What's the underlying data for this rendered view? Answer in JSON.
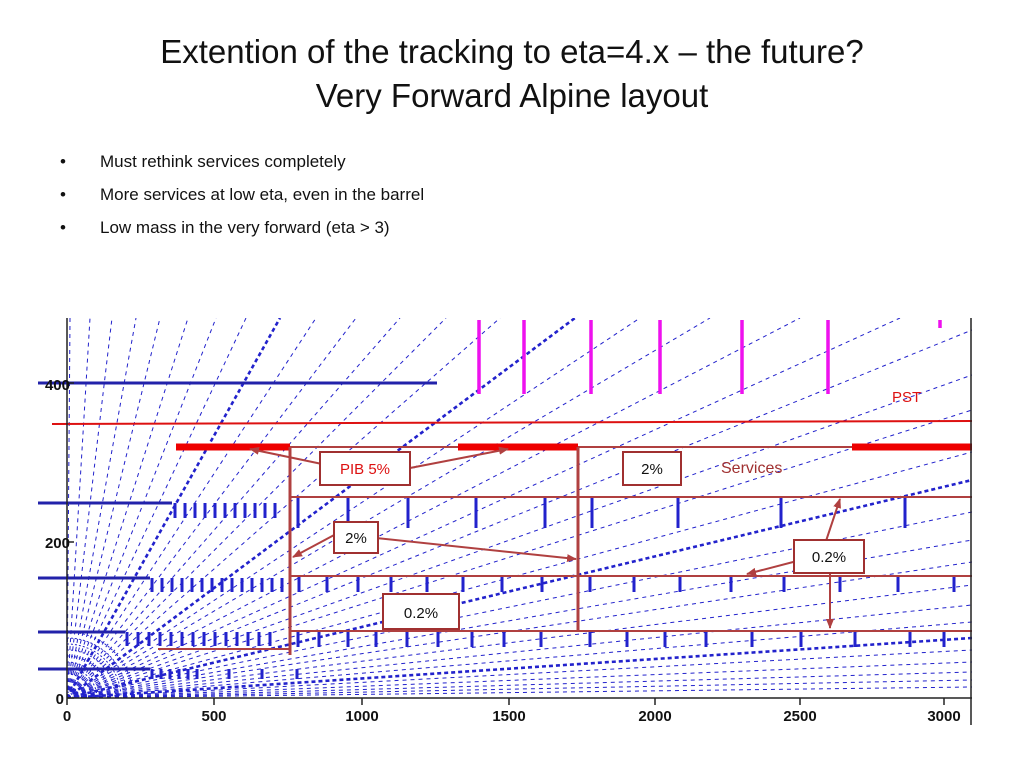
{
  "slide": {
    "title_line1": "Extention of the tracking to eta=4.x – the future?",
    "title_line2": "Very Forward Alpine layout",
    "bullets": [
      "Must rethink services completely",
      "More services at low eta, even in the barrel",
      "Low mass in the very forward (eta > 3)"
    ]
  },
  "diagram": {
    "x_ticks": [
      "0",
      "500",
      "1000",
      "1500",
      "2000",
      "2500",
      "3000"
    ],
    "y_ticks": [
      "0",
      "200",
      "400"
    ],
    "labels": {
      "pst": "PST",
      "services": "Services",
      "pib": "PIB 5%",
      "box_2pct_right": "2%",
      "box_2pct_mid": "2%",
      "box_02_right": "0.2%",
      "box_02_bottom": "0.2%"
    },
    "colors": {
      "blue": "#2222cc",
      "red": "#dd1111",
      "magenta": "#ee11ee",
      "dark_red": "#b04040",
      "services_text": "#a03030"
    }
  }
}
